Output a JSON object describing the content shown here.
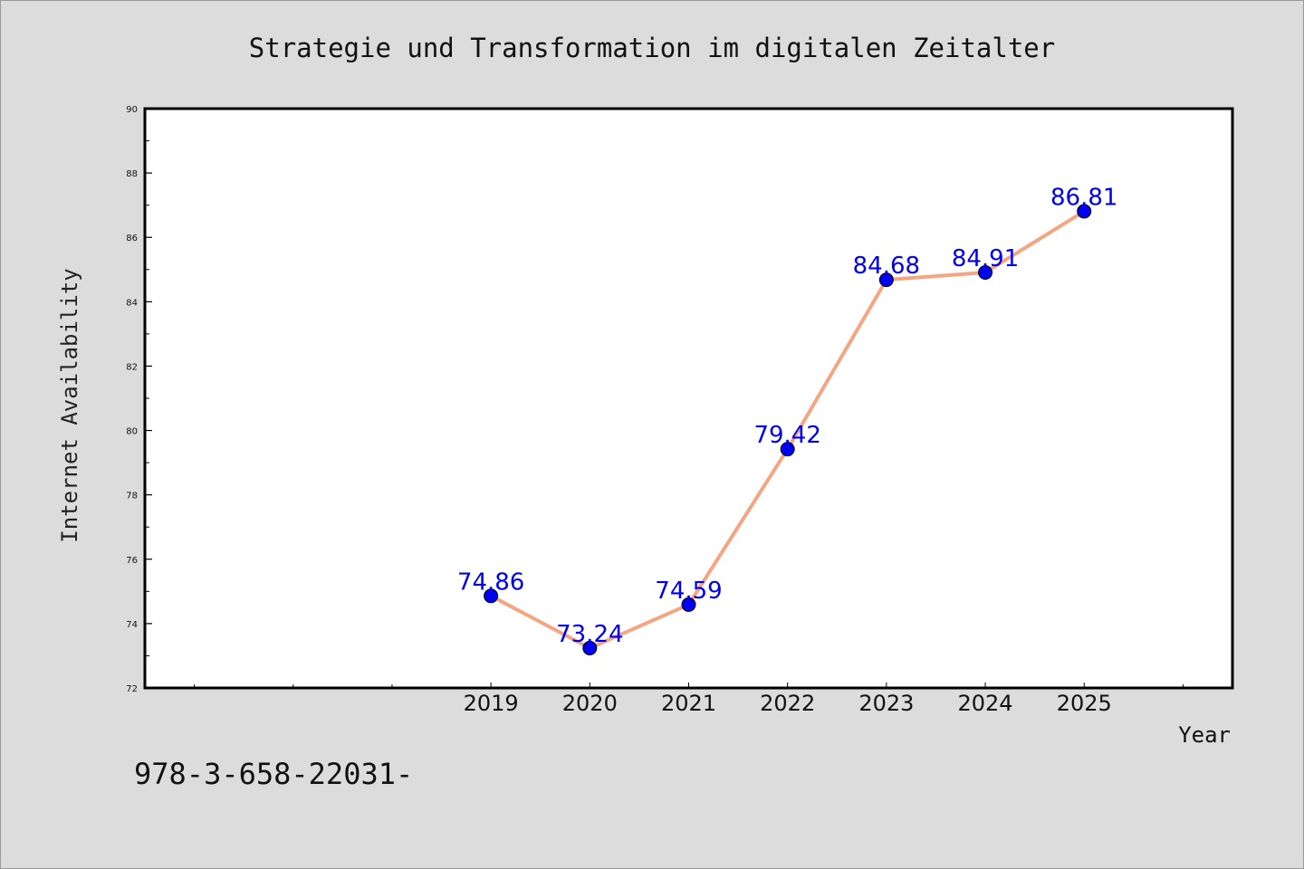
{
  "chart_data": {
    "type": "line",
    "title": "Strategie und Transformation im digitalen Zeitalter",
    "xlabel": "Year",
    "ylabel": "Internet Availability",
    "x": [
      2019,
      2020,
      2021,
      2022,
      2023,
      2024,
      2025
    ],
    "x_tick_labels": [
      "2019",
      "2020",
      "2021",
      "2022",
      "2023",
      "2024",
      "2025"
    ],
    "xlim": [
      2015.5,
      2026.5
    ],
    "ylim": [
      72,
      90
    ],
    "y_ticks": [
      72,
      74,
      76,
      78,
      80,
      82,
      84,
      86,
      88,
      90
    ],
    "series": [
      {
        "values": [
          74.86,
          73.24,
          74.59,
          79.42,
          84.68,
          84.91,
          86.81
        ],
        "data_labels": [
          "74.86",
          "73.24",
          "74.59",
          "79.42",
          "84.68",
          "84.91",
          "86.81"
        ],
        "line_color": "#f4a582",
        "marker_color": "#0000ee"
      }
    ],
    "label_color": "#0000ee",
    "grid": false,
    "legend": "none"
  },
  "footer": {
    "isbn": "978-3-658-22031-"
  }
}
